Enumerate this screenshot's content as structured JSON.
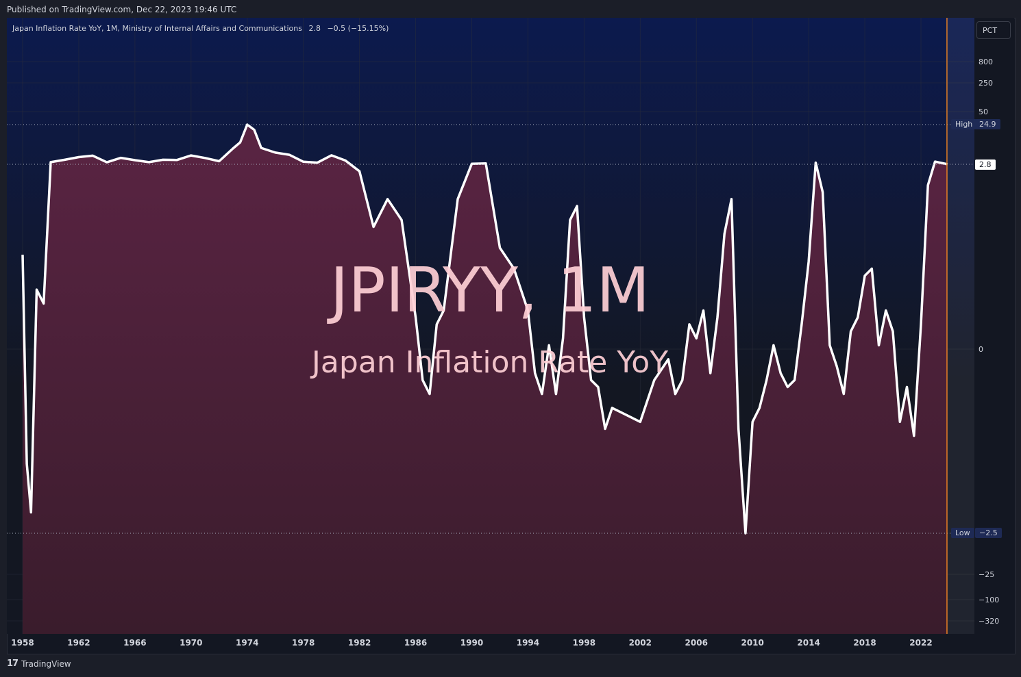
{
  "header": {
    "published": "Published on TradingView.com, Dec 22, 2023 19:46 UTC"
  },
  "legend": {
    "title": "Japan Inflation Rate YoY, 1M, Ministry of Internal Affairs and Communications",
    "last": "2.8",
    "change": "−0.5 (−15.15%)"
  },
  "scale_button": "PCT",
  "watermark": {
    "symbol": "JPIRYY, 1M",
    "description": "Japan Inflation Rate YoY"
  },
  "footer": {
    "brand": "TradingView"
  },
  "markers": {
    "high_label": "High",
    "high_value": "24.9",
    "low_label": "Low",
    "low_value": "−2.5",
    "last_value": "2.8"
  },
  "colors": {
    "line": "#ffffff",
    "fill_top": "#5a2443",
    "fill_bottom": "#3a1c2c",
    "background_top": "#0c1a4e",
    "background_bottom": "#131722",
    "last_price_line": "#e07a1f"
  },
  "chart_data": {
    "type": "area",
    "title": "Japan Inflation Rate YoY",
    "scale": "percent (log-like)",
    "y_ticks": [
      "800",
      "250",
      "50",
      "0",
      "−25",
      "−100",
      "−320"
    ],
    "x_ticks": [
      "1958",
      "1962",
      "1966",
      "1970",
      "1974",
      "1978",
      "1982",
      "1986",
      "1990",
      "1994",
      "1998",
      "2002",
      "2006",
      "2010",
      "2014",
      "2018",
      "2022"
    ],
    "high": 24.9,
    "low": -2.5,
    "last": 2.8,
    "x": [
      1958.0,
      1958.3,
      1958.6,
      1959.0,
      1959.5,
      1960.0,
      1961.0,
      1962.0,
      1963.0,
      1964.0,
      1965.0,
      1966.0,
      1967.0,
      1968.0,
      1969.0,
      1970.0,
      1971.0,
      1972.0,
      1973.0,
      1973.5,
      1974.0,
      1974.5,
      1975.0,
      1976.0,
      1977.0,
      1978.0,
      1979.0,
      1980.0,
      1981.0,
      1982.0,
      1983.0,
      1984.0,
      1985.0,
      1986.0,
      1986.5,
      1987.0,
      1987.5,
      1988.0,
      1989.0,
      1990.0,
      1991.0,
      1992.0,
      1993.0,
      1994.0,
      1994.5,
      1995.0,
      1995.5,
      1996.0,
      1996.5,
      1997.0,
      1997.5,
      1998.0,
      1998.5,
      1999.0,
      1999.5,
      2000.0,
      2001.0,
      2002.0,
      2003.0,
      2004.0,
      2004.5,
      2005.0,
      2005.5,
      2006.0,
      2006.5,
      2007.0,
      2007.5,
      2008.0,
      2008.5,
      2009.0,
      2009.5,
      2010.0,
      2010.5,
      2011.0,
      2011.5,
      2012.0,
      2012.5,
      2013.0,
      2013.5,
      2014.0,
      2014.5,
      2015.0,
      2015.5,
      2016.0,
      2016.5,
      2017.0,
      2017.5,
      2018.0,
      2018.5,
      2019.0,
      2019.5,
      2020.0,
      2020.5,
      2021.0,
      2021.5,
      2022.0,
      2022.5,
      2023.0,
      2023.9
    ],
    "values": [
      1.5,
      -1.5,
      -2.2,
      1.0,
      0.8,
      4.0,
      5.3,
      6.8,
      7.6,
      3.9,
      6.4,
      5.1,
      4.0,
      5.3,
      5.2,
      7.7,
      6.3,
      4.5,
      11.7,
      15.0,
      24.9,
      22.0,
      11.9,
      9.3,
      8.1,
      4.2,
      3.7,
      7.8,
      4.9,
      2.7,
      1.9,
      2.3,
      2.0,
      0.6,
      -0.3,
      -0.5,
      0.5,
      0.7,
      2.3,
      3.1,
      3.3,
      1.6,
      1.3,
      0.7,
      -0.2,
      -0.5,
      0.2,
      -0.5,
      0.3,
      2.0,
      2.2,
      0.6,
      -0.3,
      -0.4,
      -1.0,
      -0.7,
      -0.8,
      -0.9,
      -0.3,
      0.0,
      -0.5,
      -0.3,
      0.5,
      0.3,
      0.7,
      -0.2,
      0.6,
      1.8,
      2.3,
      -1.0,
      -2.5,
      -0.9,
      -0.7,
      -0.3,
      0.2,
      -0.2,
      -0.4,
      -0.3,
      0.5,
      1.4,
      3.7,
      2.4,
      0.2,
      -0.1,
      -0.5,
      0.4,
      0.6,
      1.2,
      1.3,
      0.2,
      0.7,
      0.4,
      -0.9,
      -0.4,
      -1.1,
      0.5,
      2.5,
      4.3,
      2.8
    ]
  }
}
